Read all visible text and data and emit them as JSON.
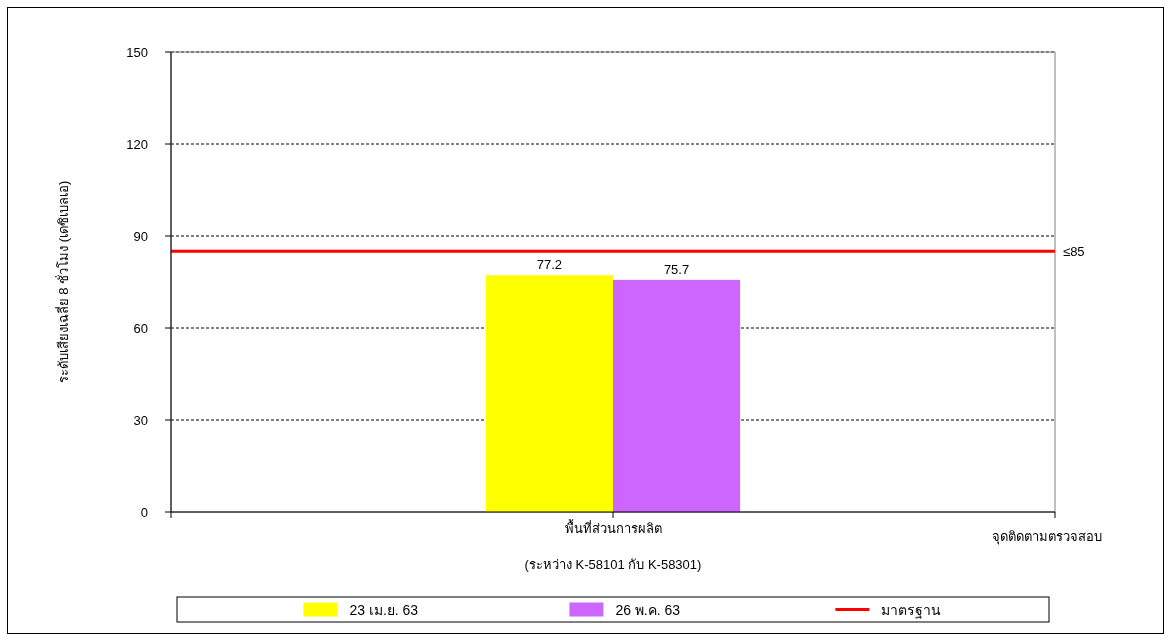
{
  "chart_data": {
    "type": "bar",
    "categories": [
      "พื้นที่ส่วนการผลิต\n(ระหว่าง K-58101 กับ K-58301)"
    ],
    "series": [
      {
        "name": "23 เม.ย. 63",
        "color": "#ffff00",
        "values": [
          77.2
        ]
      },
      {
        "name": "26 พ.ค. 63",
        "color": "#cc66ff",
        "values": [
          75.7
        ]
      }
    ],
    "xlabel": "จุดติดตามตรวจสอบ",
    "ylabel": "ระดับเสียงเฉลี่ย 8 ชั่วโมง (เดซิเบลเอ)",
    "ylim": [
      0,
      150
    ],
    "yticks": [
      0,
      30,
      60,
      90,
      120,
      150
    ],
    "grid": "y",
    "legend": "bottom",
    "data_labels": true,
    "ref_lines": [
      {
        "axis": "y",
        "value": 85,
        "label": "มาตรฐาน",
        "color": "#ff0000",
        "line_style": "solid"
      }
    ],
    "annotations": [
      "≤85"
    ]
  }
}
